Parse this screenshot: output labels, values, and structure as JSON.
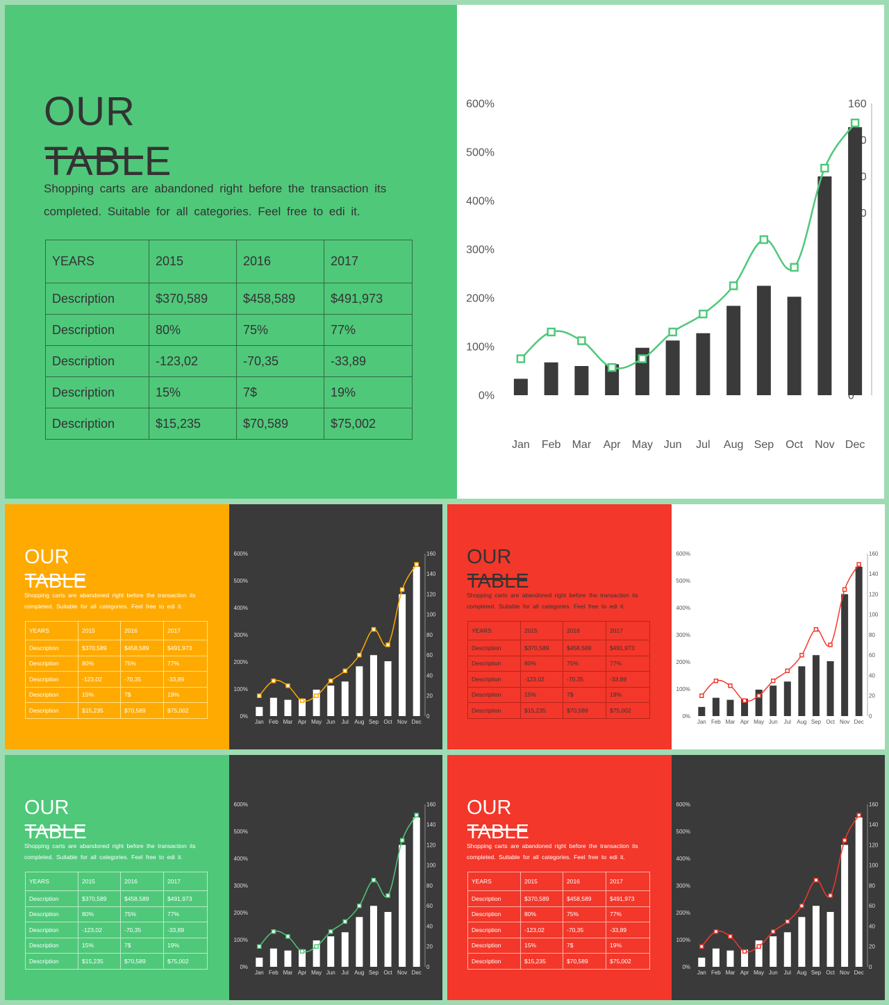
{
  "title_line1": "OUR",
  "title_line2": "TABLE",
  "description": "Shopping carts are abandoned right before the transaction its completed. Suitable for all categories. Feel free to edi it.",
  "table": {
    "header": [
      "YEARS",
      "2015",
      "2016",
      "2017"
    ],
    "rows": [
      [
        "Description",
        "$370,589",
        "$458,589",
        "$491,973"
      ],
      [
        "Description",
        "80%",
        "75%",
        "77%"
      ],
      [
        "Description",
        "-123,02",
        "-70,35",
        "-33,89"
      ],
      [
        "Description",
        "15%",
        "7$",
        "19%"
      ],
      [
        "Description",
        "$15,235",
        "$70,589",
        "$75,002"
      ]
    ]
  },
  "colors": {
    "green": "#4fc87a",
    "orange": "#ffaa00",
    "red": "#f3372a",
    "dark": "#3a3a3a",
    "white": "#ffffff",
    "background": "#9fdbb2"
  },
  "slides": [
    {
      "name": "main-slide",
      "left_bg": "#4fc87a",
      "text_color": "#333333",
      "table_border": "#2f6b43",
      "right_bg": "#ffffff",
      "bar_color": "#3a3a3a",
      "line_color": "#4fc87a",
      "tick_color": "#555555"
    },
    {
      "name": "orange-slide",
      "left_bg": "#ffaa00",
      "text_color": "#ffffff",
      "table_border": "#ffe08a",
      "right_bg": "#3a3a3a",
      "bar_color": "#ffffff",
      "line_color": "#ffaa00",
      "tick_color": "#dddddd"
    },
    {
      "name": "red-white-slide",
      "left_bg": "#f3372a",
      "text_color": "#333333",
      "table_border": "#b8241b",
      "right_bg": "#ffffff",
      "bar_color": "#3a3a3a",
      "line_color": "#f3372a",
      "tick_color": "#555555"
    },
    {
      "name": "green-dark-slide",
      "left_bg": "#4fc87a",
      "text_color": "#ffffff",
      "table_border": "#b6ecc8",
      "right_bg": "#3a3a3a",
      "bar_color": "#ffffff",
      "line_color": "#4fc87a",
      "tick_color": "#dddddd"
    },
    {
      "name": "red-dark-slide",
      "left_bg": "#f3372a",
      "text_color": "#ffffff",
      "table_border": "#ffb0a8",
      "right_bg": "#3a3a3a",
      "bar_color": "#ffffff",
      "line_color": "#f3372a",
      "tick_color": "#dddddd"
    }
  ],
  "chart_data": {
    "type": "bar",
    "categories": [
      "Jan",
      "Feb",
      "Mar",
      "Apr",
      "May",
      "Jun",
      "Jul",
      "Aug",
      "Sep",
      "Oct",
      "Nov",
      "Dec"
    ],
    "series": [
      {
        "type": "bar",
        "axis": "right",
        "values": [
          9,
          18,
          16,
          17,
          26,
          30,
          34,
          49,
          60,
          54,
          120,
          147
        ]
      },
      {
        "type": "line",
        "axis": "left",
        "values": [
          75,
          130,
          112,
          57,
          75,
          130,
          167,
          225,
          320,
          263,
          467,
          560
        ]
      }
    ],
    "ylim": [
      0,
      600
    ],
    "y2lim": [
      0,
      160
    ],
    "y_ticks": [
      "0%",
      "100%",
      "200%",
      "300%",
      "400%",
      "500%",
      "600%"
    ],
    "y2_ticks": [
      "0",
      "20",
      "40",
      "60",
      "80",
      "100",
      "120",
      "140",
      "160"
    ],
    "grid": false,
    "legend": "none",
    "line_marker": "square",
    "line_smooth": true
  }
}
